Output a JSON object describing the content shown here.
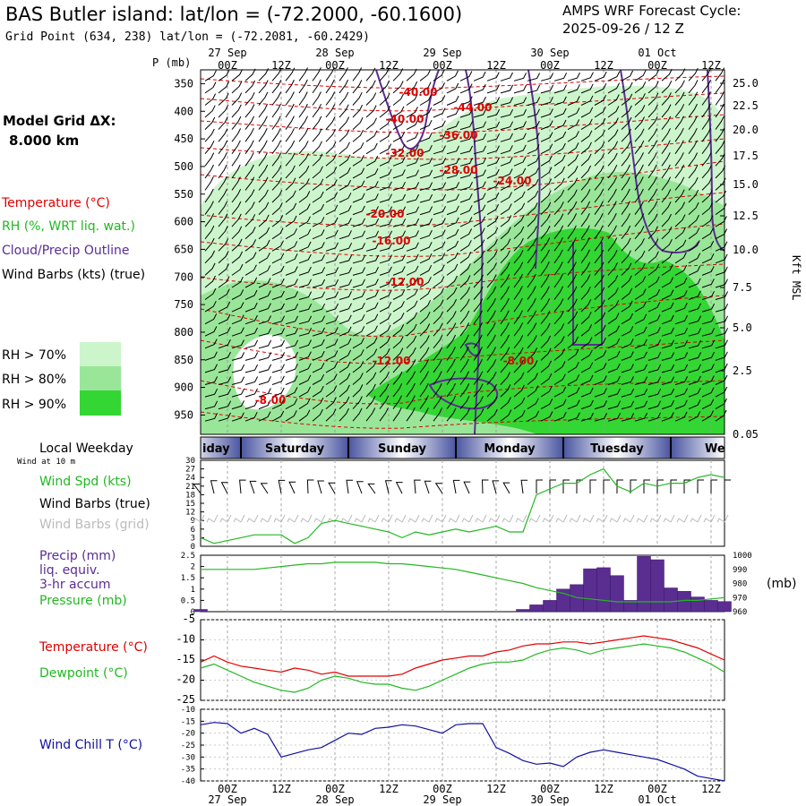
{
  "header": {
    "title": "BAS Butler island:  lat/lon = (-72.2000, -60.1600)",
    "subtitle": "Grid Point (634, 238) lat/lon = (-72.2081, -60.2429)",
    "cycle_line1": "AMPS WRF Forecast Cycle:",
    "cycle_line2": "2025-09-26 / 12  Z"
  },
  "legend": {
    "model_grid_label": "Model Grid ΔX:",
    "model_grid_value": "8.000 km",
    "temperature": "Temperature (°C)",
    "rh": "RH (%, WRT liq. wat.)",
    "cloud": "Cloud/Precip Outline",
    "wind": "Wind Barbs (kts) (true)",
    "rh70": "RH > 70%",
    "rh80": "RH > 80%",
    "rh90": "RH > 90%"
  },
  "colors": {
    "temperature": "#e00000",
    "rh70": "#ccf5cc",
    "rh80": "#99e699",
    "rh90": "#33d633",
    "cloud": "#5a2d91",
    "precip": "#5a2d91",
    "pressure": "#22b822",
    "dewpoint": "#22b822",
    "windspd": "#22b822",
    "windchill": "#1010a0",
    "grid_barbs": "#bbbbbb"
  },
  "time_axis": {
    "top_label_p": "P (mb)",
    "hour_labels": [
      "00Z",
      "12Z",
      "00Z",
      "12Z",
      "00Z",
      "12Z",
      "00Z",
      "12Z",
      "00Z",
      "12Z"
    ],
    "date_labels": [
      "27 Sep",
      "28 Sep",
      "29 Sep",
      "30 Sep",
      "01 Oct"
    ]
  },
  "chart_data": [
    {
      "type": "heatmap",
      "name": "time-height cross section",
      "pressure_ticks": [
        350,
        400,
        450,
        500,
        550,
        600,
        650,
        700,
        750,
        800,
        850,
        900,
        950
      ],
      "height_label": "Kft MSL",
      "height_ticks": [
        "25.0",
        "22.5",
        "20.0",
        "17.5",
        "15.0",
        "12.5",
        "10.0",
        "7.5",
        "5.0",
        "2.5",
        "0.05"
      ],
      "temperature_labels": [
        "-40.00",
        "-44.00",
        "-40.00",
        "-36.00",
        "-32.00",
        "-28.00",
        "-24.00",
        "-20.00",
        "-16.00",
        "-12.00",
        "-12.00",
        "-8.00",
        "-8.00"
      ]
    },
    {
      "type": "line",
      "name": "wind speed 10 m",
      "day_labels": [
        "iday",
        "Saturday",
        "Sunday",
        "Monday",
        "Tuesday",
        "We"
      ],
      "local_weekday_label": "Local Weekday",
      "wind_height_label": "Wind at 10 m",
      "series_labels": [
        "Wind Spd (kts)",
        "Wind Barbs (true)",
        "Wind Barbs (grid)"
      ],
      "y_ticks": [
        0,
        3,
        6,
        9,
        12,
        15,
        18,
        21,
        24,
        27,
        30
      ],
      "ylim": [
        0,
        30
      ],
      "hours": [
        0,
        3,
        6,
        9,
        12,
        15,
        18,
        21,
        24,
        27,
        30,
        33,
        36,
        39,
        42,
        45,
        48,
        51,
        54,
        57,
        60,
        63,
        66,
        69,
        72,
        75,
        78,
        81,
        84,
        87,
        90,
        93,
        96,
        99,
        102,
        105,
        108,
        111,
        114,
        117
      ],
      "values": [
        3,
        1,
        2,
        3,
        4,
        4,
        4,
        1,
        3,
        8,
        9,
        8,
        7,
        6,
        5,
        3,
        5,
        4,
        5,
        6,
        5,
        6,
        7,
        5,
        5,
        18,
        20,
        22,
        22,
        25,
        27,
        21,
        19,
        22,
        21,
        22,
        22,
        24,
        25,
        24
      ]
    },
    {
      "type": "bar",
      "name": "precipitation and pressure",
      "series_labels": [
        "Precip (mm)",
        "liq. equiv.",
        "3-hr accum",
        "Pressure (mb)"
      ],
      "precip_y_ticks": [
        "0",
        "0.5",
        "1",
        "1.5",
        "2",
        "2.5"
      ],
      "pressure_y_ticks": [
        960,
        970,
        980,
        990,
        1000
      ],
      "pressure_unit": "(mb)",
      "precip_ylim": [
        0,
        2.5
      ],
      "pressure_ylim": [
        960,
        1000
      ],
      "hours": [
        0,
        3,
        6,
        9,
        12,
        15,
        18,
        21,
        24,
        27,
        30,
        33,
        36,
        39,
        42,
        45,
        48,
        51,
        54,
        57,
        60,
        63,
        66,
        69,
        72,
        75,
        78,
        81,
        84,
        87,
        90,
        93,
        96,
        99,
        102,
        105,
        108,
        111,
        114,
        117
      ],
      "precip": [
        0.1,
        0,
        0,
        0,
        0,
        0,
        0,
        0,
        0,
        0,
        0,
        0,
        0,
        0,
        0,
        0,
        0,
        0,
        0,
        0,
        0,
        0,
        0,
        0,
        0.1,
        0.3,
        0.5,
        1.0,
        1.2,
        1.9,
        1.95,
        1.6,
        0.5,
        2.45,
        2.3,
        1.05,
        0.9,
        0.65,
        0.5,
        0.45
      ],
      "pressure": [
        990,
        990,
        990,
        990,
        990,
        991,
        992,
        993,
        994,
        994,
        995,
        995,
        995,
        995,
        994,
        994,
        993,
        992,
        991,
        990,
        988,
        986,
        984,
        982,
        980,
        977,
        975,
        973,
        970,
        969,
        968,
        967,
        967,
        967,
        967,
        967,
        968,
        968,
        969,
        970
      ]
    },
    {
      "type": "line",
      "name": "temperature and dewpoint",
      "series_labels": [
        "Temperature (°C)",
        "Dewpoint (°C)"
      ],
      "y_ticks": [
        -5,
        -10,
        -15,
        -20,
        -25
      ],
      "ylim": [
        -25,
        -5
      ],
      "hours": [
        0,
        3,
        6,
        9,
        12,
        15,
        18,
        21,
        24,
        27,
        30,
        33,
        36,
        39,
        42,
        45,
        48,
        51,
        54,
        57,
        60,
        63,
        66,
        69,
        72,
        75,
        78,
        81,
        84,
        87,
        90,
        93,
        96,
        99,
        102,
        105,
        108,
        111,
        114,
        117
      ],
      "temperature": [
        -15.5,
        -14,
        -15.5,
        -16.5,
        -17,
        -17.5,
        -18,
        -17,
        -17.5,
        -18.5,
        -18,
        -19,
        -19,
        -19,
        -19,
        -18.5,
        -17,
        -16,
        -15,
        -14.5,
        -14,
        -14,
        -13,
        -12.5,
        -11.5,
        -11,
        -11,
        -10.5,
        -10.5,
        -11,
        -10.5,
        -10,
        -9.5,
        -9,
        -9.5,
        -10,
        -11,
        -12,
        -13.5,
        -15
      ],
      "dewpoint": [
        -17,
        -16,
        -17.5,
        -19,
        -20.5,
        -21.5,
        -22.5,
        -23,
        -22,
        -20,
        -19,
        -19.5,
        -20.5,
        -21,
        -21,
        -22,
        -22.5,
        -21.5,
        -20,
        -18.5,
        -17,
        -16,
        -15.5,
        -15.5,
        -15,
        -13.5,
        -12.5,
        -12,
        -12.5,
        -13.5,
        -12.5,
        -12,
        -11.5,
        -11,
        -11.5,
        -12,
        -13,
        -14.5,
        -16,
        -18
      ]
    },
    {
      "type": "line",
      "name": "wind chill",
      "series_labels": [
        "Wind Chill T (°C)"
      ],
      "y_ticks": [
        -10,
        -15,
        -20,
        -25,
        -30,
        -35,
        -40
      ],
      "ylim": [
        -40,
        -10
      ],
      "hours": [
        0,
        3,
        6,
        9,
        12,
        15,
        18,
        21,
        24,
        27,
        30,
        33,
        36,
        39,
        42,
        45,
        48,
        51,
        54,
        57,
        60,
        63,
        66,
        69,
        72,
        75,
        78,
        81,
        84,
        87,
        90,
        93,
        96,
        99,
        102,
        105,
        108,
        111,
        114,
        117
      ],
      "values": [
        -16.5,
        -15.5,
        -16,
        -20,
        -18,
        -20.5,
        -30,
        -28.5,
        -27,
        -26,
        -23,
        -20,
        -20.5,
        -18,
        -17.5,
        -16.5,
        -17,
        -18.5,
        -20,
        -16.5,
        -16,
        -16,
        -26,
        -28.5,
        -31.5,
        -33,
        -32.5,
        -34,
        -30,
        -28,
        -27,
        -28,
        -29,
        -30,
        -31,
        -33,
        -35,
        -38,
        -39,
        -40
      ]
    }
  ]
}
